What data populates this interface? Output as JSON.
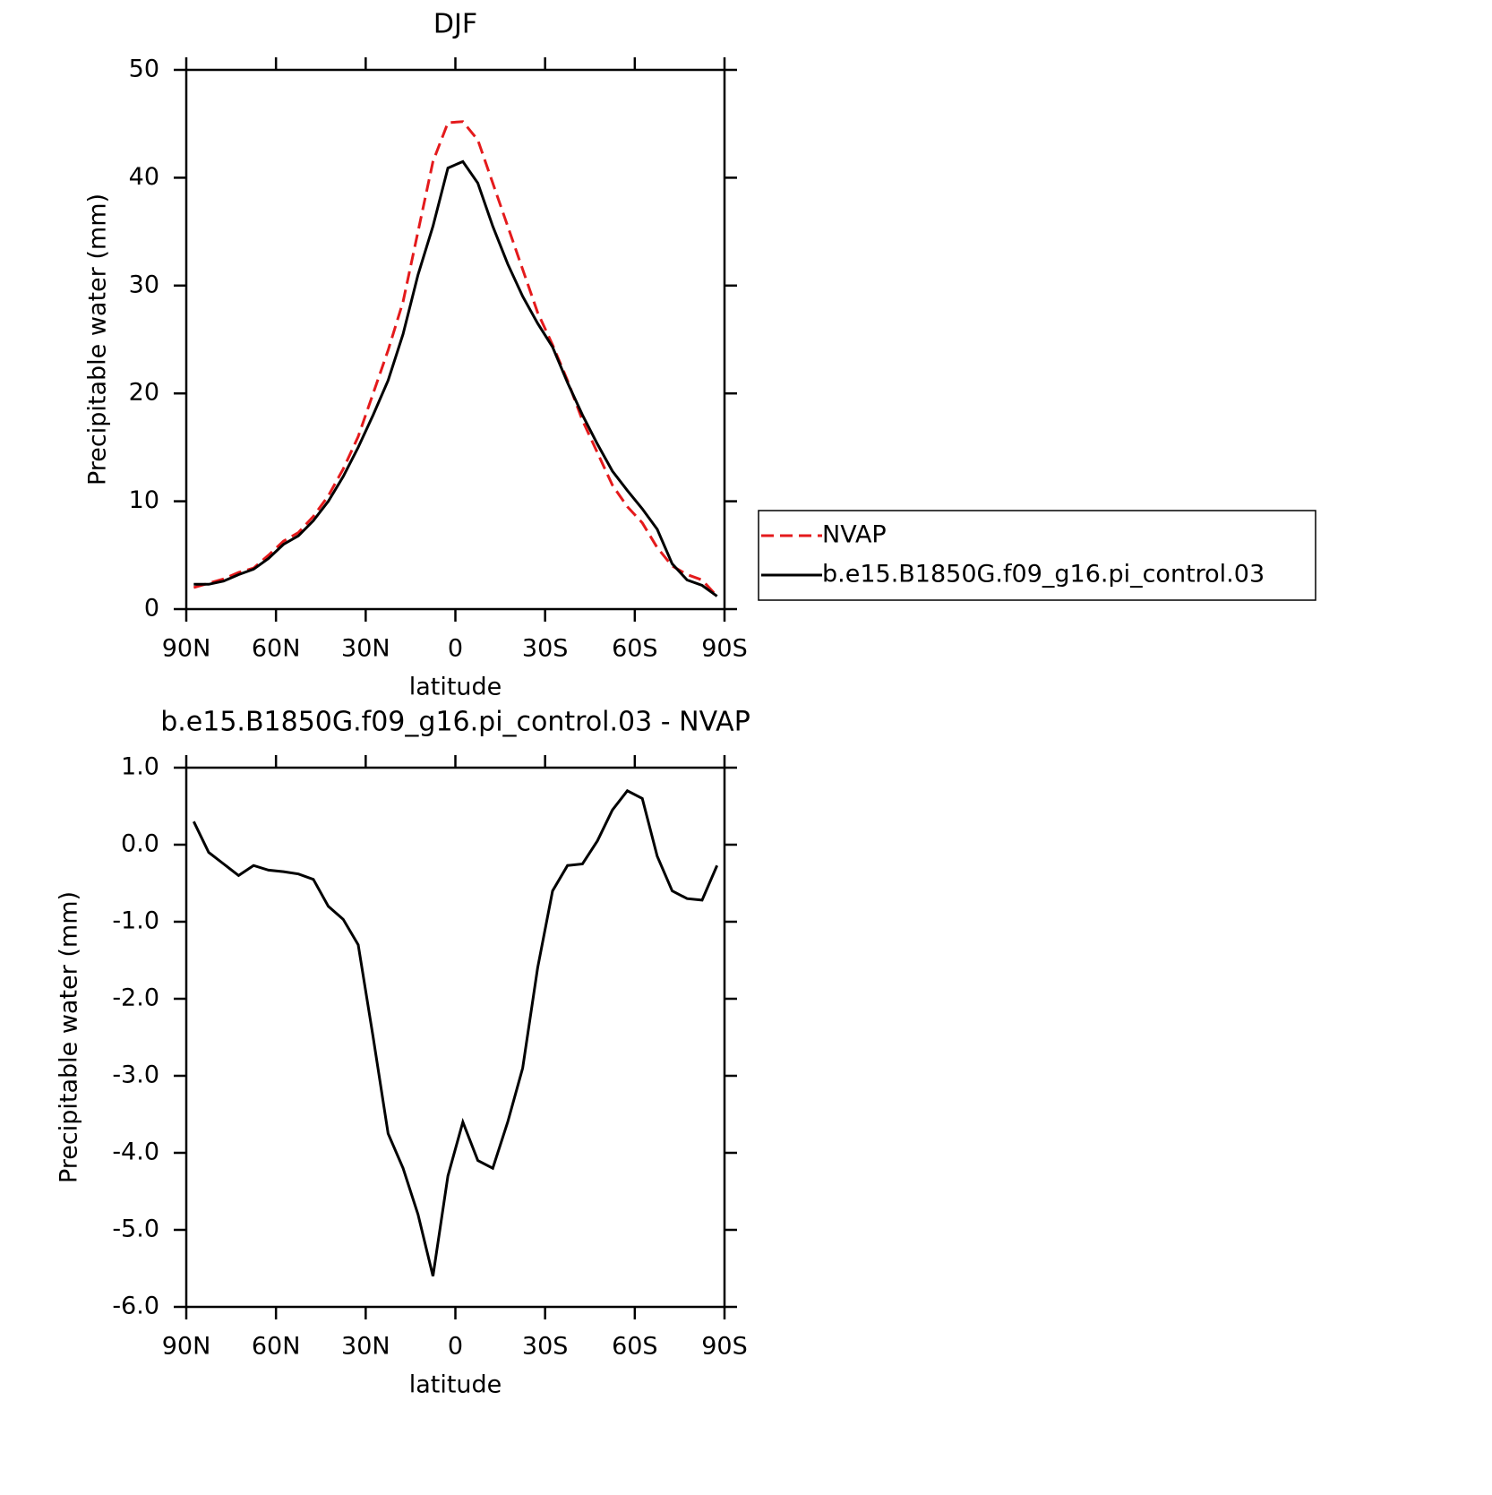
{
  "chart_data": [
    {
      "type": "line",
      "title": "DJF",
      "xlabel": "latitude",
      "ylabel": "Precipitable water (mm)",
      "x": [
        87.5,
        82.5,
        77.5,
        72.5,
        67.5,
        62.5,
        57.5,
        52.5,
        47.5,
        42.5,
        37.5,
        32.5,
        27.5,
        22.5,
        17.5,
        12.5,
        7.5,
        2.5,
        -2.5,
        -7.5,
        -12.5,
        -17.5,
        -22.5,
        -27.5,
        -32.5,
        -37.5,
        -42.5,
        -47.5,
        -52.5,
        -57.5,
        -62.5,
        -67.5,
        -72.5,
        -77.5,
        -82.5,
        -87.5
      ],
      "series": [
        {
          "name": "NVAP",
          "color": "#e41a1c",
          "linestyle": "dashed",
          "values": [
            2.0,
            2.4,
            2.8,
            3.4,
            3.8,
            5.0,
            6.3,
            7.1,
            8.6,
            10.5,
            13.0,
            16.0,
            20.0,
            24.0,
            28.5,
            35.0,
            41.5,
            45.1,
            45.2,
            43.5,
            39.5,
            35.5,
            31.5,
            27.5,
            24.5,
            21.2,
            17.5,
            14.5,
            11.5,
            9.5,
            8.0,
            5.7,
            4.0,
            3.2,
            2.7,
            1.2
          ]
        },
        {
          "name": "b.e15.B1850G.f09_g16.pi_control.03",
          "color": "#000000",
          "linestyle": "solid",
          "values": [
            2.3,
            2.3,
            2.6,
            3.2,
            3.7,
            4.7,
            6.0,
            6.8,
            8.2,
            10.0,
            12.3,
            15.0,
            18.0,
            21.2,
            25.5,
            31.0,
            35.5,
            40.9,
            41.5,
            39.5,
            35.5,
            32.0,
            29.0,
            26.5,
            24.3,
            21.0,
            18.0,
            15.3,
            12.8,
            11.0,
            9.3,
            7.4,
            4.2,
            2.7,
            2.2,
            1.2
          ]
        }
      ],
      "xlim": [
        90,
        -90
      ],
      "xticks": [
        {
          "value": 90,
          "label": "90N"
        },
        {
          "value": 60,
          "label": "60N"
        },
        {
          "value": 30,
          "label": "30N"
        },
        0,
        {
          "value": -30,
          "label": "30S"
        },
        {
          "value": -60,
          "label": "60S"
        },
        {
          "value": -90,
          "label": "90S"
        }
      ],
      "ylim": [
        0,
        50
      ],
      "yticks": [
        0,
        10,
        20,
        30,
        40,
        50
      ],
      "legend": "right"
    },
    {
      "type": "line",
      "title": "b.e15.B1850G.f09_g16.pi_control.03 - NVAP",
      "xlabel": "latitude",
      "ylabel": "Precipitable water (mm)",
      "x": [
        87.5,
        82.5,
        77.5,
        72.5,
        67.5,
        62.5,
        57.5,
        52.5,
        47.5,
        42.5,
        37.5,
        32.5,
        27.5,
        22.5,
        17.5,
        12.5,
        7.5,
        2.5,
        -2.5,
        -7.5,
        -12.5,
        -17.5,
        -22.5,
        -27.5,
        -32.5,
        -37.5,
        -42.5,
        -47.5,
        -52.5,
        -57.5,
        -62.5,
        -67.5,
        -72.5,
        -77.5,
        -82.5,
        -87.5
      ],
      "series": [
        {
          "color": "#000000",
          "linestyle": "solid",
          "values": [
            0.3,
            -0.1,
            -0.25,
            -0.4,
            -0.27,
            -0.33,
            -0.35,
            -0.38,
            -0.45,
            -0.8,
            -0.97,
            -1.3,
            -2.5,
            -3.75,
            -4.2,
            -4.8,
            -5.6,
            -4.3,
            -3.6,
            -4.1,
            -4.2,
            -3.6,
            -2.9,
            -1.6,
            -0.6,
            -0.27,
            -0.25,
            0.05,
            0.45,
            0.7,
            0.6,
            -0.15,
            -0.6,
            -0.7,
            -0.72,
            -0.27
          ]
        }
      ],
      "xlim": [
        90,
        -90
      ],
      "xticks": [
        {
          "value": 90,
          "label": "90N"
        },
        {
          "value": 60,
          "label": "60N"
        },
        {
          "value": 30,
          "label": "30N"
        },
        0,
        {
          "value": -30,
          "label": "30S"
        },
        {
          "value": -60,
          "label": "60S"
        },
        {
          "value": -90,
          "label": "90S"
        }
      ],
      "ylim": [
        -6,
        1
      ],
      "yticks": [
        {
          "value": -6,
          "label": "-6.0"
        },
        {
          "value": -5,
          "label": "-5.0"
        },
        {
          "value": -4,
          "label": "-4.0"
        },
        {
          "value": -3,
          "label": "-3.0"
        },
        {
          "value": -2,
          "label": "-2.0"
        },
        {
          "value": -1,
          "label": "-1.0"
        },
        {
          "value": 0,
          "label": "0.0"
        },
        {
          "value": 1,
          "label": "1.0"
        }
      ]
    }
  ]
}
